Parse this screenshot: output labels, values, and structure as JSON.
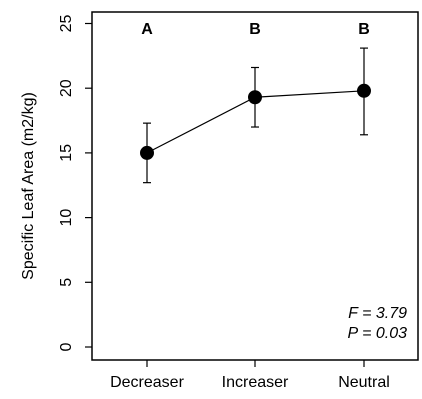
{
  "chart_data": {
    "type": "scatter",
    "categories": [
      "Decreaser",
      "Increaser",
      "Neutral"
    ],
    "values": [
      15.0,
      19.3,
      19.8
    ],
    "error_upper": [
      17.3,
      21.6,
      23.1
    ],
    "error_lower": [
      12.7,
      17.0,
      16.4
    ],
    "group_letters": [
      "A",
      "B",
      "B"
    ],
    "ylabel": "Specific Leaf Area (m2/kg)",
    "xlabel": "",
    "ylim": [
      0,
      25
    ],
    "yticks": [
      "0",
      "5",
      "10",
      "15",
      "20",
      "25"
    ],
    "annotations": [
      "F = 3.79",
      "P = 0.03"
    ],
    "grid": false,
    "connected_points": true,
    "point_color": "#000000"
  }
}
